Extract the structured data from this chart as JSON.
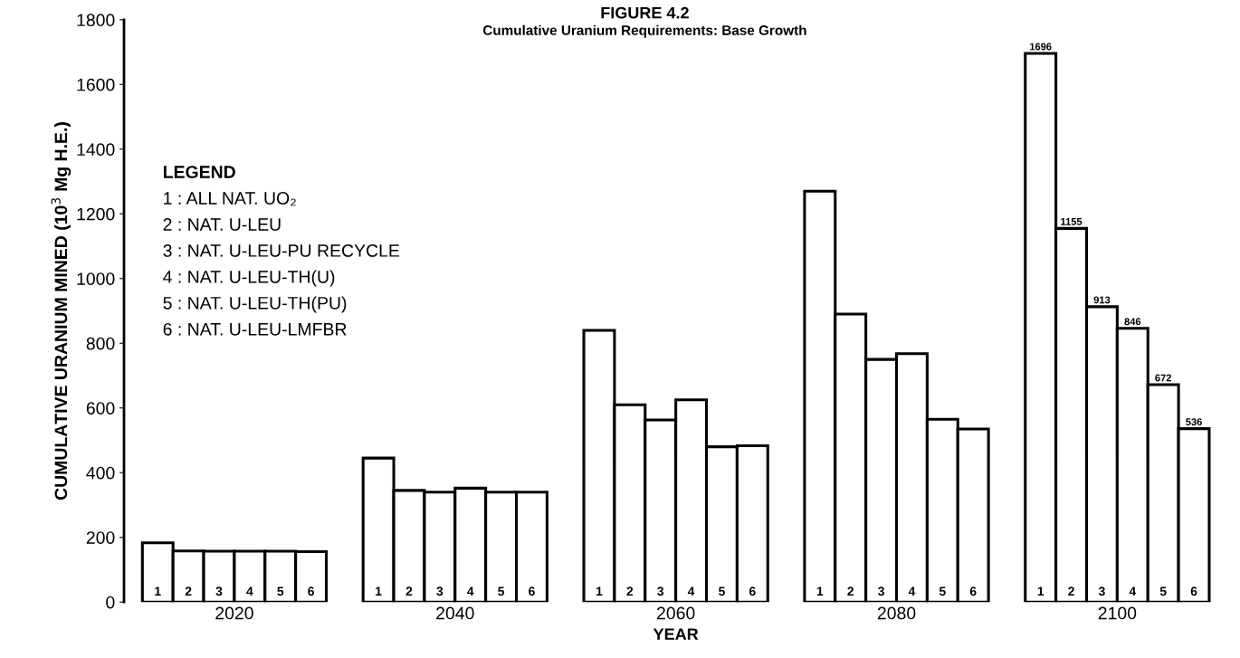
{
  "chart_data": {
    "type": "bar",
    "title": "FIGURE 4.2",
    "subtitle": "Cumulative Uranium Requirements: Base Growth",
    "xlabel": "YEAR",
    "ylabel": "CUMULATIVE URANIUM MINED (10$^{3}$ Mg H.E.)",
    "categories": [
      "2020",
      "2040",
      "2060",
      "2080",
      "2100"
    ],
    "series": [
      {
        "name": "1",
        "color": "#ffffff",
        "values": [
          183,
          445,
          840,
          1270,
          1696
        ],
        "value_labels": [
          null,
          null,
          null,
          null,
          "1696"
        ]
      },
      {
        "name": "2",
        "color": "#ffffff",
        "values": [
          158,
          345,
          610,
          890,
          1155
        ],
        "value_labels": [
          null,
          null,
          null,
          null,
          "1155"
        ]
      },
      {
        "name": "3",
        "color": "#ffffff",
        "values": [
          157,
          340,
          563,
          750,
          913
        ],
        "value_labels": [
          null,
          null,
          null,
          null,
          "913"
        ]
      },
      {
        "name": "4",
        "color": "#ffffff",
        "values": [
          157,
          352,
          625,
          768,
          846
        ],
        "value_labels": [
          null,
          null,
          null,
          null,
          "846"
        ]
      },
      {
        "name": "5",
        "color": "#ffffff",
        "values": [
          157,
          340,
          480,
          565,
          672
        ],
        "value_labels": [
          null,
          null,
          null,
          null,
          "672"
        ]
      },
      {
        "name": "6",
        "color": "#ffffff",
        "values": [
          156,
          340,
          483,
          535,
          536
        ],
        "value_labels": [
          null,
          null,
          null,
          null,
          "536"
        ]
      }
    ],
    "annotations": [
      "LEGEND",
      "1 : ALL NAT. UO₂",
      "2 : NAT. U-LEU",
      "3 : NAT. U-LEU-PU RECYCLE",
      "4 : NAT. U-LEU-TH(U)",
      "5 : NAT. U-LEU-TH(PU)",
      "6 : NAT. U-LEU-LMFBR"
    ],
    "ylim": [
      0,
      1800
    ],
    "yticks": [
      0,
      200,
      400,
      600,
      800,
      1000,
      1200,
      1400,
      1600,
      1800
    ],
    "grid": false,
    "legend": false
  }
}
